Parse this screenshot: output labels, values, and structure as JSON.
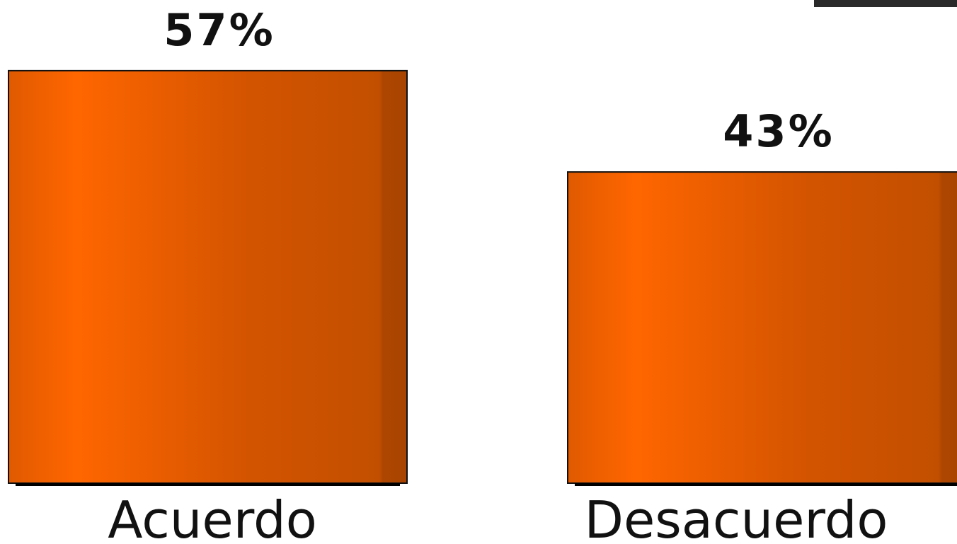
{
  "chart_data": {
    "type": "bar",
    "categories": [
      "Acuerdo",
      "Desacuerdo"
    ],
    "values": [
      57,
      43
    ],
    "value_labels": [
      "57%",
      "43%"
    ],
    "color": "#ff6600"
  }
}
